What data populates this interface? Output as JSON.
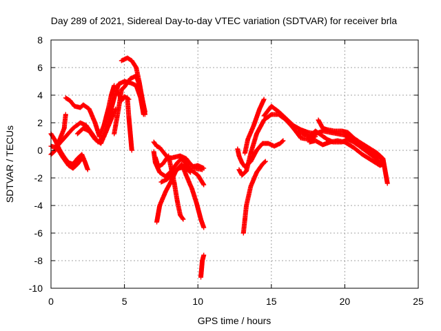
{
  "chart_data": {
    "type": "scatter",
    "title": "Day 289 of 2021, Sidereal Day-to-day VTEC variation (SDTVAR) for receiver brla",
    "xlabel": "GPS time / hours",
    "ylabel": "SDTVAR / TECUs",
    "xlim": [
      0,
      25
    ],
    "ylim": [
      -10,
      8
    ],
    "xticks": [
      0,
      5,
      10,
      15,
      20,
      25
    ],
    "yticks": [
      -10,
      -8,
      -6,
      -4,
      -2,
      0,
      2,
      4,
      6,
      8
    ],
    "grid": true,
    "marker": "+",
    "color": "#ff0000",
    "tracks": [
      [
        [
          0.0,
          1.2
        ],
        [
          0.3,
          0.7
        ],
        [
          0.6,
          0.0
        ],
        [
          0.9,
          -0.5
        ],
        [
          1.2,
          -0.9
        ],
        [
          1.5,
          -1.0
        ],
        [
          1.8,
          -0.6
        ],
        [
          2.1,
          -0.3
        ],
        [
          2.3,
          -0.8
        ],
        [
          2.5,
          -1.4
        ]
      ],
      [
        [
          0.0,
          -0.3
        ],
        [
          0.3,
          0.0
        ],
        [
          0.6,
          0.8
        ],
        [
          0.9,
          1.6
        ],
        [
          1.0,
          2.6
        ]
      ],
      [
        [
          0.0,
          0.3
        ],
        [
          0.4,
          0.2
        ],
        [
          0.8,
          -0.5
        ],
        [
          1.2,
          -1.1
        ],
        [
          1.5,
          -1.3
        ],
        [
          1.8,
          -1.0
        ],
        [
          2.1,
          -0.6
        ]
      ],
      [
        [
          1.0,
          3.8
        ],
        [
          1.3,
          3.6
        ],
        [
          1.6,
          3.2
        ],
        [
          2.0,
          3.1
        ],
        [
          2.2,
          3.3
        ],
        [
          2.6,
          3.0
        ],
        [
          3.0,
          2.0
        ],
        [
          3.3,
          1.0
        ],
        [
          3.6,
          1.8
        ],
        [
          3.9,
          3.0
        ],
        [
          4.1,
          4.0
        ],
        [
          4.3,
          4.7
        ]
      ],
      [
        [
          0.5,
          0.4
        ],
        [
          1.0,
          1.0
        ],
        [
          1.5,
          1.6
        ],
        [
          2.0,
          2.0
        ],
        [
          2.4,
          1.8
        ],
        [
          2.8,
          1.2
        ],
        [
          3.2,
          0.6
        ],
        [
          3.6,
          1.0
        ],
        [
          4.0,
          2.0
        ],
        [
          4.4,
          3.0
        ]
      ],
      [
        [
          1.8,
          1.2
        ],
        [
          2.2,
          1.6
        ],
        [
          2.6,
          1.4
        ],
        [
          3.0,
          0.8
        ],
        [
          3.4,
          0.5
        ],
        [
          3.8,
          1.5
        ],
        [
          4.0,
          2.6
        ],
        [
          4.3,
          3.8
        ],
        [
          4.6,
          4.8
        ],
        [
          5.0,
          5.0
        ],
        [
          5.4,
          4.9
        ],
        [
          5.8,
          4.7
        ],
        [
          6.1,
          3.8
        ],
        [
          6.3,
          2.6
        ]
      ],
      [
        [
          4.3,
          1.2
        ],
        [
          4.6,
          3.0
        ],
        [
          4.8,
          4.4
        ],
        [
          5.0,
          4.6
        ],
        [
          5.4,
          5.2
        ],
        [
          5.8,
          5.4
        ],
        [
          6.0,
          4.8
        ],
        [
          6.2,
          3.8
        ],
        [
          6.4,
          2.6
        ]
      ],
      [
        [
          4.8,
          6.5
        ],
        [
          5.2,
          6.7
        ],
        [
          5.5,
          6.5
        ],
        [
          5.8,
          6.0
        ],
        [
          6.0,
          5.0
        ],
        [
          6.2,
          3.8
        ],
        [
          6.4,
          2.8
        ]
      ],
      [
        [
          4.6,
          4.2
        ],
        [
          4.8,
          3.6
        ],
        [
          5.0,
          3.9
        ],
        [
          5.3,
          3.7
        ]
      ],
      [
        [
          5.2,
          3.8
        ],
        [
          5.3,
          2.4
        ],
        [
          5.4,
          1.2
        ],
        [
          5.5,
          0.0
        ]
      ],
      [
        [
          7.0,
          0.6
        ],
        [
          7.2,
          0.3
        ],
        [
          7.4,
          0.2
        ],
        [
          7.7,
          -0.2
        ],
        [
          8.0,
          -0.6
        ],
        [
          8.4,
          -0.5
        ],
        [
          8.8,
          -0.4
        ],
        [
          9.2,
          -0.6
        ],
        [
          9.5,
          -1.0
        ],
        [
          9.8,
          -1.3
        ],
        [
          10.3,
          -1.4
        ]
      ],
      [
        [
          7.0,
          -0.1
        ],
        [
          7.1,
          -0.9
        ],
        [
          7.4,
          -1.6
        ],
        [
          7.8,
          -1.9
        ],
        [
          8.2,
          -1.5
        ],
        [
          8.6,
          -0.9
        ],
        [
          8.9,
          -0.6
        ],
        [
          9.2,
          -1.0
        ],
        [
          9.5,
          -1.4
        ],
        [
          10.0,
          -1.8
        ],
        [
          10.4,
          -2.5
        ]
      ],
      [
        [
          7.1,
          -0.5
        ],
        [
          7.3,
          -1.2
        ],
        [
          7.6,
          -1.0
        ],
        [
          8.0,
          -0.4
        ],
        [
          8.4,
          -2.4
        ],
        [
          8.6,
          -3.7
        ],
        [
          8.8,
          -4.7
        ],
        [
          9.0,
          -5.0
        ]
      ],
      [
        [
          7.2,
          -5.2
        ],
        [
          7.4,
          -4.0
        ],
        [
          7.8,
          -3.0
        ],
        [
          8.2,
          -2.2
        ],
        [
          8.5,
          -1.5
        ],
        [
          8.9,
          -1.0
        ],
        [
          9.2,
          -1.8
        ],
        [
          9.6,
          -2.8
        ],
        [
          9.9,
          -3.8
        ],
        [
          10.2,
          -5.0
        ],
        [
          10.4,
          -5.6
        ]
      ],
      [
        [
          7.5,
          -2.3
        ],
        [
          7.9,
          -2.1
        ],
        [
          8.3,
          -1.7
        ],
        [
          8.7,
          -1.3
        ],
        [
          9.1,
          -1.2
        ],
        [
          9.5,
          -1.6
        ]
      ],
      [
        [
          9.6,
          -1.2
        ],
        [
          10.0,
          -1.1
        ],
        [
          10.4,
          -1.3
        ]
      ],
      [
        [
          10.2,
          -9.2
        ],
        [
          10.25,
          -8.6
        ],
        [
          10.3,
          -8.0
        ],
        [
          10.4,
          -7.6
        ]
      ],
      [
        [
          12.7,
          0.1
        ],
        [
          12.8,
          -0.4
        ],
        [
          13.0,
          -0.9
        ],
        [
          13.2,
          -1.2
        ],
        [
          13.6,
          -0.8
        ],
        [
          14.0,
          0.0
        ],
        [
          14.4,
          0.5
        ],
        [
          14.8,
          0.5
        ],
        [
          15.2,
          0.3
        ],
        [
          15.6,
          0.5
        ],
        [
          15.8,
          0.7
        ]
      ],
      [
        [
          12.8,
          -1.4
        ],
        [
          13.0,
          -1.8
        ],
        [
          13.3,
          -1.5
        ],
        [
          13.6,
          -0.2
        ],
        [
          14.0,
          1.2
        ],
        [
          14.5,
          2.2
        ],
        [
          15.0,
          2.6
        ],
        [
          15.5,
          2.6
        ],
        [
          16.0,
          2.2
        ],
        [
          16.5,
          1.6
        ],
        [
          17.0,
          0.9
        ],
        [
          17.5,
          0.8
        ],
        [
          18.0,
          1.0
        ]
      ],
      [
        [
          13.1,
          -6.0
        ],
        [
          13.3,
          -4.0
        ],
        [
          13.6,
          -2.6
        ],
        [
          14.0,
          -1.6
        ],
        [
          14.4,
          -1.0
        ],
        [
          14.6,
          -0.8
        ]
      ],
      [
        [
          13.2,
          -0.2
        ],
        [
          13.4,
          0.8
        ],
        [
          13.8,
          1.8
        ],
        [
          14.2,
          3.0
        ],
        [
          14.5,
          3.7
        ]
      ],
      [
        [
          14.5,
          2.5
        ],
        [
          15.0,
          3.2
        ],
        [
          15.5,
          2.8
        ],
        [
          16.0,
          2.3
        ],
        [
          16.5,
          1.8
        ],
        [
          17.0,
          1.5
        ],
        [
          17.5,
          1.3
        ],
        [
          18.0,
          1.2
        ],
        [
          18.5,
          1.4
        ],
        [
          19.0,
          1.3
        ],
        [
          19.5,
          1.2
        ],
        [
          20.0,
          1.1
        ],
        [
          20.5,
          0.8
        ],
        [
          21.0,
          0.3
        ],
        [
          21.5,
          0.0
        ],
        [
          22.0,
          -0.3
        ],
        [
          22.4,
          -0.5
        ],
        [
          22.6,
          -0.8
        ]
      ],
      [
        [
          16.8,
          1.3
        ],
        [
          17.2,
          1.2
        ],
        [
          17.6,
          1.0
        ],
        [
          18.0,
          1.4
        ],
        [
          18.4,
          1.1
        ],
        [
          18.8,
          0.8
        ],
        [
          19.2,
          0.6
        ],
        [
          19.8,
          0.6
        ],
        [
          20.2,
          0.8
        ],
        [
          20.6,
          0.6
        ],
        [
          21.0,
          0.3
        ],
        [
          21.5,
          -0.1
        ],
        [
          22.0,
          -0.5
        ],
        [
          22.3,
          -0.8
        ],
        [
          22.6,
          -1.0
        ]
      ],
      [
        [
          17.6,
          0.6
        ],
        [
          18.0,
          0.7
        ],
        [
          18.5,
          0.4
        ],
        [
          19.0,
          0.6
        ],
        [
          19.5,
          0.7
        ],
        [
          20.0,
          0.6
        ],
        [
          20.6,
          0.2
        ],
        [
          21.2,
          -0.3
        ],
        [
          21.8,
          -0.7
        ],
        [
          22.4,
          -1.1
        ],
        [
          22.6,
          -1.0
        ]
      ],
      [
        [
          18.2,
          2.2
        ],
        [
          18.5,
          1.6
        ],
        [
          18.8,
          1.5
        ],
        [
          19.3,
          1.4
        ],
        [
          19.8,
          1.4
        ],
        [
          20.2,
          1.3
        ],
        [
          20.6,
          0.9
        ],
        [
          21.0,
          0.6
        ],
        [
          21.6,
          0.2
        ],
        [
          22.2,
          -0.2
        ],
        [
          22.6,
          -0.6
        ],
        [
          22.7,
          -1.2
        ],
        [
          22.8,
          -1.8
        ],
        [
          22.9,
          -2.4
        ]
      ]
    ]
  }
}
